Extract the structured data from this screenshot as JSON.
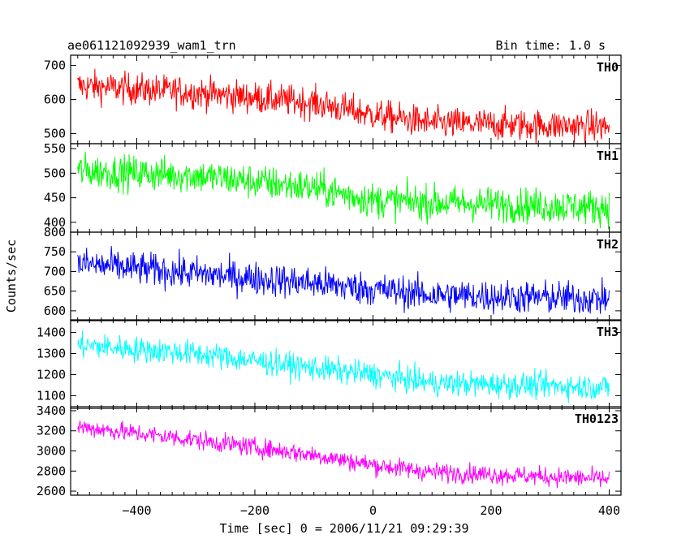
{
  "header": {
    "title": "ae061121092939_wam1_trn",
    "bin_time": "Bin time: 1.0 s"
  },
  "axis": {
    "ylabel": "Counts/sec",
    "xlabel": "Time [sec] 0 = 2006/11/21 09:29:39"
  },
  "chart_data": {
    "type": "line",
    "title": "ae061121092939_wam1_trn",
    "subtitle": "Bin time: 1.0 s",
    "xlabel": "Time [sec] 0 = 2006/11/21 09:29:39",
    "ylabel": "Counts/sec",
    "xlim": [
      -512,
      420
    ],
    "x_ticks": [
      -400,
      -200,
      0,
      200,
      400
    ],
    "x_range": [
      -500,
      400
    ],
    "bin_time_s": 1.0,
    "grid": false,
    "panels": [
      {
        "name": "TH0",
        "color": "#ff0000",
        "ylim": [
          470,
          730
        ],
        "y_ticks": [
          500,
          600,
          700
        ],
        "trend": {
          "x": [
            -500,
            -300,
            -100,
            0,
            100,
            400
          ],
          "y": [
            640,
            620,
            590,
            555,
            530,
            520
          ]
        },
        "noise_amplitude": 42
      },
      {
        "name": "TH1",
        "color": "#00ff00",
        "ylim": [
          380,
          560
        ],
        "y_ticks": [
          400,
          450,
          500,
          550
        ],
        "trend": {
          "x": [
            -500,
            -300,
            -100,
            0,
            100,
            400
          ],
          "y": [
            505,
            495,
            470,
            445,
            440,
            430
          ]
        },
        "noise_amplitude": 32
      },
      {
        "name": "TH2",
        "color": "#0000ff",
        "ylim": [
          575,
          800
        ],
        "y_ticks": [
          600,
          650,
          700,
          750,
          800
        ],
        "trend": {
          "x": [
            -500,
            -300,
            -100,
            0,
            100,
            400
          ],
          "y": [
            720,
            695,
            670,
            655,
            640,
            630
          ]
        },
        "noise_amplitude": 38
      },
      {
        "name": "TH3",
        "color": "#00ffff",
        "ylim": [
          1040,
          1460
        ],
        "y_ticks": [
          1100,
          1200,
          1300,
          1400
        ],
        "trend": {
          "x": [
            -500,
            -300,
            -100,
            0,
            100,
            400
          ],
          "y": [
            1340,
            1300,
            1230,
            1200,
            1160,
            1140
          ]
        },
        "noise_amplitude": 55
      },
      {
        "name": "TH0123",
        "color": "#ff00ff",
        "ylim": [
          2560,
          3440
        ],
        "y_ticks": [
          2600,
          2800,
          3000,
          3200,
          3400
        ],
        "trend": {
          "x": [
            -500,
            -300,
            -100,
            0,
            100,
            400
          ],
          "y": [
            3240,
            3110,
            2960,
            2860,
            2790,
            2720
          ]
        },
        "noise_amplitude": 85
      }
    ]
  }
}
